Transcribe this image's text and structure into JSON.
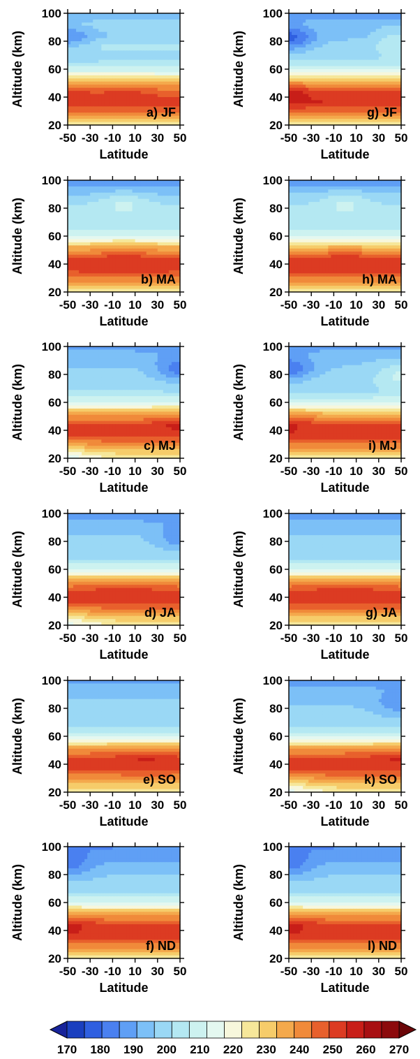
{
  "axes": {
    "ylabel": "Altitude (km)",
    "xlabel": "Latitude",
    "yticks": [
      "20",
      "40",
      "60",
      "80",
      "100"
    ],
    "xticks": [
      "-50",
      "-30",
      "-10",
      "10",
      "30",
      "50"
    ]
  },
  "colors": {
    "ramp": [
      "#1a3fbf",
      "#2f5fe0",
      "#4a80f0",
      "#5f9ff5",
      "#7cc0f7",
      "#9ad8f5",
      "#b4e8f2",
      "#cdf2f0",
      "#e4f8f0",
      "#f7f7dc",
      "#f6e79a",
      "#f6cc6a",
      "#f4a94c",
      "#f08a3a",
      "#e8602c",
      "#dc3b22",
      "#c81e18",
      "#a80f12",
      "#8c0a0c"
    ]
  },
  "colorbar": {
    "labels": [
      "170",
      "180",
      "190",
      "200",
      "210",
      "220",
      "230",
      "240",
      "250",
      "260",
      "270"
    ]
  },
  "chart_data": [
    {
      "type": "heatmap",
      "panel_label": "a) JF",
      "column": "left",
      "row": 1,
      "x": [
        -50,
        50
      ],
      "y": [
        20,
        100
      ],
      "profile": [
        226,
        245,
        256,
        250,
        232,
        210,
        200,
        205,
        198,
        200,
        194
      ],
      "features": [
        [
          -50,
          82,
          -12
        ],
        [
          0,
          48,
          4
        ],
        [
          -50,
          46,
          4
        ]
      ]
    },
    {
      "type": "heatmap",
      "panel_label": "b) MA",
      "column": "left",
      "row": 2,
      "x": [
        -50,
        50
      ],
      "y": [
        20,
        100
      ],
      "profile": [
        226,
        242,
        255,
        253,
        237,
        215,
        204,
        205,
        202,
        195,
        186
      ],
      "features": [
        [
          0,
          46,
          4
        ],
        [
          0,
          84,
          7
        ]
      ]
    },
    {
      "type": "heatmap",
      "panel_label": "c) MJ",
      "column": "left",
      "row": 3,
      "x": [
        -50,
        50
      ],
      "y": [
        20,
        100
      ],
      "profile": [
        224,
        240,
        254,
        254,
        238,
        215,
        203,
        200,
        198,
        195,
        190
      ],
      "features": [
        [
          50,
          84,
          -14
        ],
        [
          50,
          46,
          6
        ],
        [
          -50,
          22,
          -8
        ]
      ]
    },
    {
      "type": "heatmap",
      "panel_label": "d) JA",
      "column": "left",
      "row": 4,
      "x": [
        -50,
        50
      ],
      "y": [
        20,
        100
      ],
      "profile": [
        224,
        240,
        254,
        255,
        238,
        214,
        202,
        200,
        198,
        194,
        188
      ],
      "features": [
        [
          50,
          82,
          -10
        ],
        [
          -50,
          24,
          -8
        ],
        [
          0,
          46,
          3
        ]
      ]
    },
    {
      "type": "heatmap",
      "panel_label": "e) SO",
      "column": "left",
      "row": 5,
      "x": [
        -50,
        50
      ],
      "y": [
        20,
        100
      ],
      "profile": [
        226,
        240,
        253,
        255,
        238,
        213,
        201,
        200,
        198,
        196,
        190
      ],
      "features": [
        [
          20,
          46,
          4
        ]
      ]
    },
    {
      "type": "heatmap",
      "panel_label": "f) ND",
      "column": "left",
      "row": 6,
      "x": [
        -50,
        50
      ],
      "y": [
        20,
        100
      ],
      "profile": [
        226,
        243,
        256,
        254,
        238,
        214,
        202,
        199,
        196,
        190,
        186
      ],
      "features": [
        [
          -50,
          46,
          6
        ],
        [
          -50,
          86,
          -10
        ]
      ]
    },
    {
      "type": "heatmap",
      "panel_label": "g) JF",
      "column": "right",
      "row": 1,
      "x": [
        -50,
        50
      ],
      "y": [
        20,
        100
      ],
      "profile": [
        224,
        245,
        258,
        252,
        232,
        212,
        202,
        200,
        196,
        196,
        188
      ],
      "features": [
        [
          -50,
          82,
          -18
        ],
        [
          -50,
          45,
          8
        ],
        [
          50,
          80,
          10
        ]
      ]
    },
    {
      "type": "heatmap",
      "panel_label": "h) MA",
      "column": "right",
      "row": 2,
      "x": [
        -50,
        50
      ],
      "y": [
        20,
        100
      ],
      "profile": [
        226,
        243,
        255,
        253,
        235,
        213,
        203,
        205,
        202,
        196,
        186
      ],
      "features": [
        [
          0,
          46,
          4
        ],
        [
          0,
          84,
          7
        ]
      ]
    },
    {
      "type": "heatmap",
      "panel_label": "i) MJ",
      "column": "right",
      "row": 3,
      "x": [
        -50,
        50
      ],
      "y": [
        20,
        100
      ],
      "profile": [
        224,
        242,
        256,
        253,
        236,
        213,
        202,
        201,
        198,
        196,
        190
      ],
      "features": [
        [
          -50,
          84,
          -16
        ],
        [
          -50,
          46,
          6
        ],
        [
          50,
          80,
          10
        ]
      ]
    },
    {
      "type": "heatmap",
      "panel_label": "g) JA",
      "column": "right",
      "row": 4,
      "x": [
        -50,
        50
      ],
      "y": [
        20,
        100
      ],
      "profile": [
        224,
        240,
        254,
        255,
        238,
        214,
        202,
        200,
        198,
        194,
        188
      ],
      "features": [
        [
          0,
          46,
          3
        ]
      ]
    },
    {
      "type": "heatmap",
      "panel_label": "k) SO",
      "column": "right",
      "row": 5,
      "x": [
        -50,
        50
      ],
      "y": [
        20,
        100
      ],
      "profile": [
        224,
        240,
        254,
        255,
        238,
        212,
        200,
        199,
        197,
        195,
        188
      ],
      "features": [
        [
          50,
          84,
          -10
        ],
        [
          -50,
          24,
          -8
        ],
        [
          50,
          46,
          4
        ]
      ]
    },
    {
      "type": "heatmap",
      "panel_label": "l) ND",
      "column": "right",
      "row": 6,
      "x": [
        -50,
        50
      ],
      "y": [
        20,
        100
      ],
      "profile": [
        226,
        243,
        256,
        254,
        238,
        214,
        202,
        199,
        196,
        190,
        186
      ],
      "features": [
        [
          -50,
          46,
          6
        ],
        [
          -50,
          86,
          -10
        ]
      ]
    }
  ]
}
